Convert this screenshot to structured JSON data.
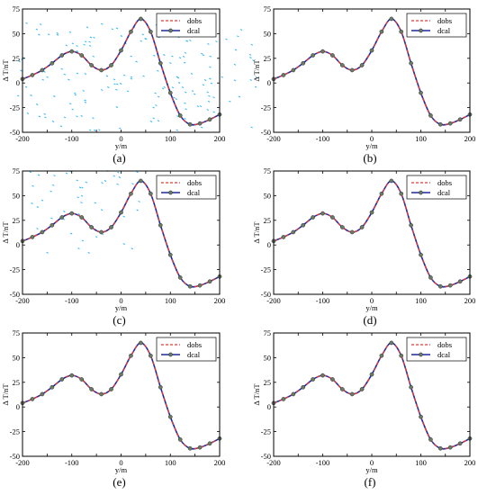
{
  "figure": {
    "x_ticks": [
      "-200",
      "-100",
      "0",
      "100",
      "200"
    ],
    "y_ticks": [
      "-50",
      "-25",
      "0",
      "25",
      "50",
      "75"
    ],
    "xlabel": "y/m",
    "ylabel": "Δ T/nT",
    "legend": [
      "dobs",
      "dcal"
    ],
    "colors": {
      "dobs": "#e53935",
      "dcal": "#1f2a9e",
      "noise": "#29b6f6",
      "marker": "#6e7a63"
    }
  },
  "chart_data": [
    {
      "type": "line",
      "panel_label": "(a)",
      "title": "",
      "xlabel": "y/m",
      "ylabel": "Δ T/nT",
      "xlim": [
        -200,
        200
      ],
      "ylim": [
        -50,
        75
      ],
      "x_ticks": [
        -200,
        -100,
        0,
        100,
        200
      ],
      "y_ticks": [
        -50,
        -25,
        0,
        25,
        50,
        75
      ],
      "legend_position": "top-right",
      "grid": false,
      "noise_points": "many scattered cyan points across the plot (noisy data)",
      "series": [
        {
          "name": "dobs",
          "style": "red dashed",
          "x": [
            -200,
            -180,
            -160,
            -140,
            -120,
            -100,
            -80,
            -60,
            -40,
            -20,
            0,
            20,
            40,
            60,
            80,
            100,
            120,
            140,
            160,
            180,
            200
          ],
          "values": [
            4,
            8,
            13,
            20,
            28,
            32,
            28,
            18,
            13,
            18,
            33,
            52,
            65,
            52,
            20,
            -10,
            -33,
            -42,
            -41,
            -37,
            -32
          ]
        },
        {
          "name": "dcal",
          "style": "blue solid with circle markers",
          "x": [
            -200,
            -180,
            -160,
            -140,
            -120,
            -100,
            -80,
            -60,
            -40,
            -20,
            0,
            20,
            40,
            60,
            80,
            100,
            120,
            140,
            160,
            180,
            200
          ],
          "values": [
            4,
            8,
            13,
            20,
            28,
            32,
            28,
            18,
            13,
            18,
            33,
            52,
            65,
            52,
            20,
            -10,
            -33,
            -42,
            -41,
            -37,
            -32
          ]
        }
      ]
    },
    {
      "type": "line",
      "panel_label": "(b)",
      "title": "",
      "xlabel": "y/m",
      "ylabel": "Δ T/nT",
      "xlim": [
        -200,
        200
      ],
      "ylim": [
        -50,
        75
      ],
      "legend_position": "top-right",
      "grid": false,
      "series": [
        {
          "name": "dobs",
          "style": "red dashed",
          "x": [
            -200,
            -180,
            -160,
            -140,
            -120,
            -100,
            -80,
            -60,
            -40,
            -20,
            0,
            20,
            40,
            60,
            80,
            100,
            120,
            140,
            160,
            180,
            200
          ],
          "values": [
            4,
            8,
            13,
            20,
            28,
            32,
            28,
            18,
            13,
            18,
            33,
            52,
            65,
            52,
            20,
            -10,
            -33,
            -42,
            -41,
            -37,
            -32
          ]
        },
        {
          "name": "dcal",
          "style": "blue solid with circle markers",
          "x": [
            -200,
            -180,
            -160,
            -140,
            -120,
            -100,
            -80,
            -60,
            -40,
            -20,
            0,
            20,
            40,
            60,
            80,
            100,
            120,
            140,
            160,
            180,
            200
          ],
          "values": [
            4,
            8,
            13,
            20,
            28,
            32,
            28,
            18,
            13,
            18,
            33,
            52,
            65,
            52,
            20,
            -10,
            -33,
            -42,
            -41,
            -37,
            -32
          ]
        }
      ]
    },
    {
      "type": "line",
      "panel_label": "(c)",
      "title": "",
      "xlabel": "y/m",
      "ylabel": "Δ T/nT",
      "xlim": [
        -200,
        200
      ],
      "ylim": [
        -50,
        75
      ],
      "legend_position": "top-right",
      "grid": false,
      "noise_points": "scattered cyan points on the left half (noisy data)",
      "series": [
        {
          "name": "dobs",
          "style": "red dashed",
          "x": [
            -200,
            -180,
            -160,
            -140,
            -120,
            -100,
            -80,
            -60,
            -40,
            -20,
            0,
            20,
            40,
            60,
            80,
            100,
            120,
            140,
            160,
            180,
            200
          ],
          "values": [
            4,
            8,
            13,
            20,
            28,
            32,
            28,
            18,
            13,
            18,
            33,
            52,
            65,
            52,
            20,
            -10,
            -33,
            -42,
            -41,
            -37,
            -32
          ]
        },
        {
          "name": "dcal",
          "style": "blue solid with circle markers",
          "x": [
            -200,
            -180,
            -160,
            -140,
            -120,
            -100,
            -80,
            -60,
            -40,
            -20,
            0,
            20,
            40,
            60,
            80,
            100,
            120,
            140,
            160,
            180,
            200
          ],
          "values": [
            4,
            8,
            13,
            20,
            28,
            32,
            28,
            18,
            13,
            18,
            33,
            52,
            65,
            52,
            20,
            -10,
            -33,
            -42,
            -41,
            -37,
            -32
          ]
        }
      ]
    },
    {
      "type": "line",
      "panel_label": "(d)",
      "title": "",
      "xlabel": "y/m",
      "ylabel": "Δ T/nT",
      "xlim": [
        -200,
        200
      ],
      "ylim": [
        -50,
        75
      ],
      "legend_position": "top-right",
      "grid": false,
      "series": [
        {
          "name": "dobs",
          "style": "red dashed",
          "x": [
            -200,
            -180,
            -160,
            -140,
            -120,
            -100,
            -80,
            -60,
            -40,
            -20,
            0,
            20,
            40,
            60,
            80,
            100,
            120,
            140,
            160,
            180,
            200
          ],
          "values": [
            4,
            8,
            13,
            20,
            28,
            32,
            28,
            18,
            13,
            18,
            33,
            52,
            65,
            52,
            20,
            -10,
            -33,
            -42,
            -41,
            -37,
            -32
          ]
        },
        {
          "name": "dcal",
          "style": "blue solid with circle markers",
          "x": [
            -200,
            -180,
            -160,
            -140,
            -120,
            -100,
            -80,
            -60,
            -40,
            -20,
            0,
            20,
            40,
            60,
            80,
            100,
            120,
            140,
            160,
            180,
            200
          ],
          "values": [
            4,
            8,
            13,
            20,
            28,
            32,
            28,
            18,
            13,
            18,
            33,
            52,
            65,
            52,
            20,
            -10,
            -33,
            -42,
            -41,
            -37,
            -32
          ]
        }
      ]
    },
    {
      "type": "line",
      "panel_label": "(e)",
      "title": "",
      "xlabel": "y/m",
      "ylabel": "Δ T/nT",
      "xlim": [
        -200,
        200
      ],
      "ylim": [
        -50,
        75
      ],
      "legend_position": "top-right",
      "grid": false,
      "series": [
        {
          "name": "dobs",
          "style": "red dashed",
          "x": [
            -200,
            -180,
            -160,
            -140,
            -120,
            -100,
            -80,
            -60,
            -40,
            -20,
            0,
            20,
            40,
            60,
            80,
            100,
            120,
            140,
            160,
            180,
            200
          ],
          "values": [
            4,
            8,
            13,
            20,
            28,
            32,
            28,
            18,
            13,
            18,
            33,
            52,
            65,
            52,
            20,
            -10,
            -33,
            -42,
            -41,
            -37,
            -32
          ]
        },
        {
          "name": "dcal",
          "style": "blue solid with circle markers",
          "x": [
            -200,
            -180,
            -160,
            -140,
            -120,
            -100,
            -80,
            -60,
            -40,
            -20,
            0,
            20,
            40,
            60,
            80,
            100,
            120,
            140,
            160,
            180,
            200
          ],
          "values": [
            4,
            8,
            13,
            20,
            28,
            32,
            28,
            18,
            13,
            18,
            33,
            52,
            65,
            52,
            20,
            -10,
            -33,
            -42,
            -41,
            -37,
            -32
          ]
        }
      ]
    },
    {
      "type": "line",
      "panel_label": "(f)",
      "title": "",
      "xlabel": "y/m",
      "ylabel": "Δ T/nT",
      "xlim": [
        -200,
        200
      ],
      "ylim": [
        -50,
        75
      ],
      "legend_position": "top-right",
      "grid": false,
      "series": [
        {
          "name": "dobs",
          "style": "red dashed",
          "x": [
            -200,
            -180,
            -160,
            -140,
            -120,
            -100,
            -80,
            -60,
            -40,
            -20,
            0,
            20,
            40,
            60,
            80,
            100,
            120,
            140,
            160,
            180,
            200
          ],
          "values": [
            4,
            8,
            13,
            20,
            28,
            32,
            28,
            18,
            13,
            18,
            33,
            52,
            65,
            52,
            20,
            -10,
            -33,
            -42,
            -41,
            -37,
            -32
          ]
        },
        {
          "name": "dcal",
          "style": "blue solid with circle markers",
          "x": [
            -200,
            -180,
            -160,
            -140,
            -120,
            -100,
            -80,
            -60,
            -40,
            -20,
            0,
            20,
            40,
            60,
            80,
            100,
            120,
            140,
            160,
            180,
            200
          ],
          "values": [
            4,
            8,
            13,
            20,
            28,
            32,
            28,
            18,
            13,
            18,
            33,
            52,
            65,
            52,
            20,
            -10,
            -33,
            -42,
            -41,
            -37,
            -32
          ]
        }
      ]
    }
  ]
}
